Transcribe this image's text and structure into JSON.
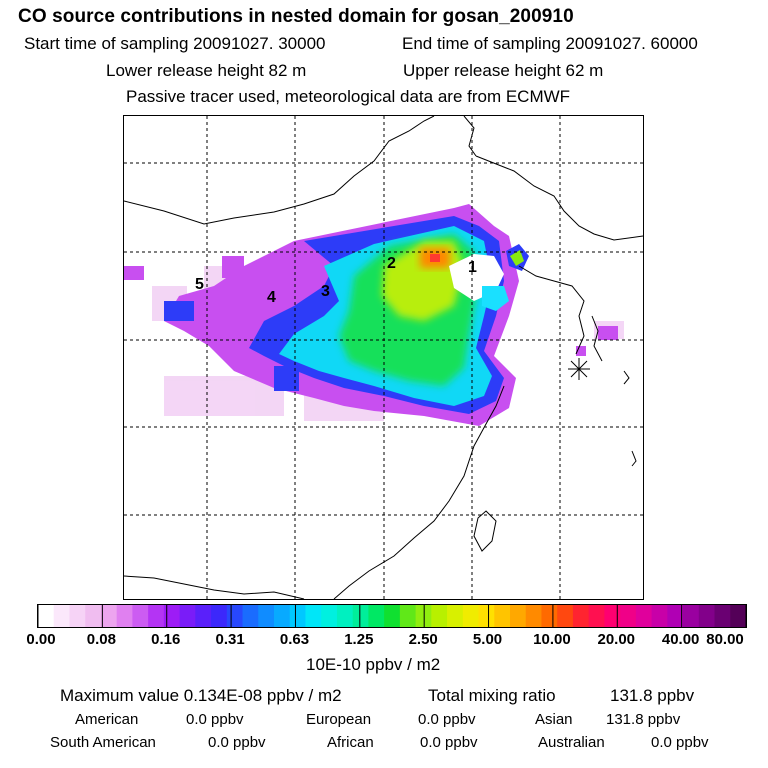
{
  "header": {
    "title": "CO  source contributions in nested domain for gosan_200910",
    "start_time": "Start time of sampling 20091027. 30000",
    "end_time": "End time of sampling 20091027. 60000",
    "lower_release": "Lower release height   82 m",
    "upper_release": "Upper release height   62 m",
    "tracer_note": "Passive tracer used, meteorological data are from ECMWF"
  },
  "map": {
    "region_labels": [
      "1",
      "2",
      "3",
      "4",
      "5"
    ],
    "receptor_symbol": "receptor-star"
  },
  "legend": {
    "ticks": [
      "0.00",
      "0.08",
      "0.16",
      "0.31",
      "0.63",
      "1.25",
      "2.50",
      "5.00",
      "10.00",
      "20.00",
      "40.00",
      "80.00"
    ],
    "units": "10E-10 ppbv / m2",
    "colors": [
      "#ffffff",
      "#fbe8fb",
      "#f6d3f6",
      "#f0bdf0",
      "#eda5ef",
      "#e080f0",
      "#cc5cf2",
      "#b434f4",
      "#9d1cf6",
      "#7a1cf8",
      "#5a20fa",
      "#3c28fb",
      "#2848fd",
      "#1a6cfe",
      "#108cff",
      "#08aaff",
      "#00c8ff",
      "#00e6f8",
      "#00f0e0",
      "#00f0c0",
      "#00ee9a",
      "#00e864",
      "#10e030",
      "#60e818",
      "#90ee10",
      "#b8f000",
      "#d8f000",
      "#f0ec00",
      "#ffe000",
      "#ffc400",
      "#ffa800",
      "#ff8a00",
      "#ff6a00",
      "#ff4810",
      "#ff2430",
      "#ff1050",
      "#ff0070",
      "#f00088",
      "#e0009c",
      "#c800a8",
      "#b000b4",
      "#9a00a0",
      "#82008a",
      "#6a0072",
      "#540058"
    ]
  },
  "stats": {
    "max_value": "Maximum value  0.134E-08 ppbv / m2",
    "total_mixing": "Total mixing ratio",
    "total_mixing_value": "131.8 ppbv",
    "american_label": "American",
    "american_value": "0.0 ppbv",
    "european_label": "European",
    "european_value": "0.0 ppbv",
    "asian_label": "Asian",
    "asian_value": "131.8 ppbv",
    "south_american_label": "South American",
    "south_american_value": "0.0 ppbv",
    "african_label": "African",
    "african_value": "0.0 ppbv",
    "australian_label": "Australian",
    "australian_value": "0.0 ppbv"
  }
}
